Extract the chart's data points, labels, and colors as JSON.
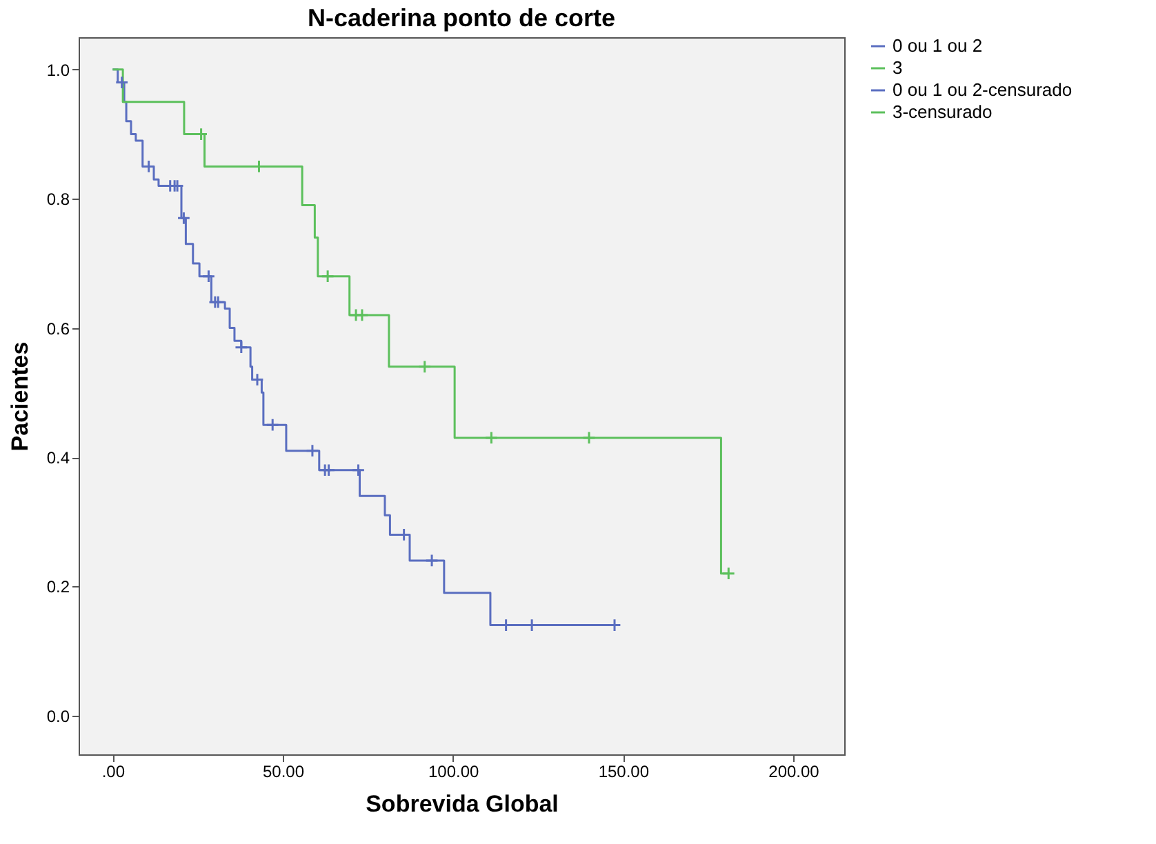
{
  "chart_data": {
    "type": "step",
    "title": "N-caderina ponto de corte",
    "xlabel": "Sobrevida Global",
    "ylabel": "Pacientes",
    "xlim": [
      -10,
      215
    ],
    "ylim": [
      -0.06,
      1.05
    ],
    "xticks": [
      {
        "value": 0,
        "label": ".00"
      },
      {
        "value": 50,
        "label": "50.00"
      },
      {
        "value": 100,
        "label": "100.00"
      },
      {
        "value": 150,
        "label": "150.00"
      },
      {
        "value": 200,
        "label": "200.00"
      }
    ],
    "yticks": [
      {
        "value": 0,
        "label": "0.0"
      },
      {
        "value": 0.2,
        "label": "0.2"
      },
      {
        "value": 0.4,
        "label": "0.4"
      },
      {
        "value": 0.6,
        "label": "0.6"
      },
      {
        "value": 0.8,
        "label": "0.8"
      },
      {
        "value": 1,
        "label": "1.0"
      }
    ],
    "grid": false,
    "legend": "right",
    "series": [
      {
        "name": "0 ou 1 ou 2",
        "color": "#5a6ec0",
        "x": [
          0,
          1.5,
          3.4,
          4.0,
          5.4,
          6.8,
          8.8,
          12.1,
          13.5,
          20.2,
          21.5,
          23.6,
          25.5,
          29,
          33,
          34.4,
          35.8,
          37.8,
          40.5,
          41,
          43.8,
          44.3,
          51,
          60.7,
          72.6,
          80,
          81.5,
          87.3,
          97.4,
          111,
          147.5
        ],
        "values": [
          1.0,
          0.98,
          0.95,
          0.92,
          0.9,
          0.89,
          0.85,
          0.83,
          0.82,
          0.77,
          0.73,
          0.7,
          0.68,
          0.64,
          0.63,
          0.6,
          0.58,
          0.57,
          0.54,
          0.52,
          0.5,
          0.45,
          0.41,
          0.38,
          0.34,
          0.31,
          0.28,
          0.24,
          0.19,
          0.14,
          0.14
        ]
      },
      {
        "name": "3",
        "color": "#5cc05c",
        "x": [
          0,
          3,
          21,
          27,
          55.7,
          59.4,
          60.3,
          69.6,
          81.2,
          100.5,
          178.8,
          181
        ],
        "values": [
          1.0,
          0.95,
          0.9,
          0.85,
          0.79,
          0.74,
          0.68,
          0.62,
          0.54,
          0.43,
          0.22,
          0.22
        ]
      },
      {
        "name": "0 ou 1 ou 2-censurado",
        "type": "scatter",
        "marker": "cross",
        "color": "#5a6ec0",
        "x": [
          2.7,
          10.6,
          16.9,
          18.2,
          19,
          20.9,
          28.2,
          30.1,
          31,
          37.8,
          42.5,
          47,
          58.7,
          62.4,
          63.5,
          72.2,
          85.6,
          93.8,
          115.6,
          123.2,
          147.5
        ],
        "values": [
          0.98,
          0.85,
          0.82,
          0.82,
          0.82,
          0.77,
          0.68,
          0.64,
          0.64,
          0.57,
          0.52,
          0.45,
          0.41,
          0.38,
          0.38,
          0.38,
          0.28,
          0.24,
          0.14,
          0.14,
          0.14
        ]
      },
      {
        "name": "3-censurado",
        "type": "scatter",
        "marker": "cross",
        "color": "#5cc05c",
        "x": [
          26,
          43,
          63.2,
          71.5,
          73.3,
          91.7,
          111.3,
          140,
          181
        ],
        "values": [
          0.9,
          0.85,
          0.68,
          0.62,
          0.62,
          0.54,
          0.43,
          0.43,
          0.22
        ]
      }
    ]
  }
}
